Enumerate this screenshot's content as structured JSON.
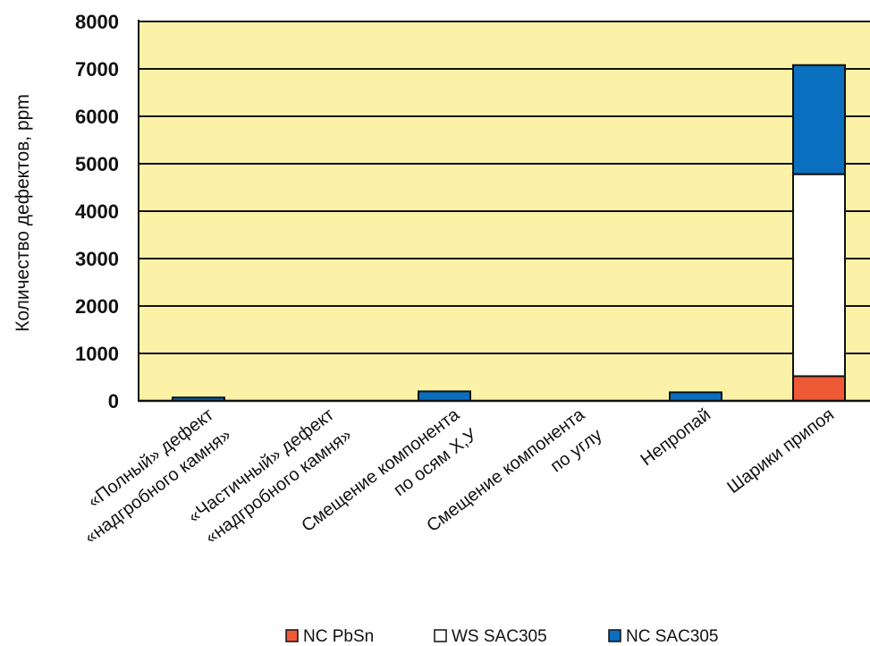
{
  "chart_data": {
    "type": "bar",
    "stacked": true,
    "title": "",
    "xlabel": "",
    "ylabel": "Количество дефектов, ppm",
    "ylim": [
      0,
      8000
    ],
    "yticks": [
      0,
      1000,
      2000,
      3000,
      4000,
      5000,
      6000,
      7000,
      8000
    ],
    "grid": true,
    "legend_position": "bottom",
    "plot_background": "#fcf2a7",
    "categories": [
      [
        "«Полный» дефект",
        "«надгробного камня»"
      ],
      [
        "«Частичный» дефект",
        "«надгробного камня»"
      ],
      [
        "Смещение компонента",
        "по осям X,У"
      ],
      [
        "Смещение компонента",
        "по углу"
      ],
      [
        "Непропай"
      ],
      [
        "Шарики припоя"
      ]
    ],
    "series": [
      {
        "name": "NC PbSn",
        "color": "#ee5a36",
        "values": [
          0,
          0,
          0,
          0,
          0,
          520
        ]
      },
      {
        "name": "WS SAC305",
        "color": "#ffffff",
        "values": [
          0,
          0,
          0,
          0,
          0,
          4260
        ]
      },
      {
        "name": "NC SAC305",
        "color": "#0a6fbf",
        "values": [
          70,
          0,
          200,
          0,
          180,
          2300
        ]
      }
    ]
  }
}
